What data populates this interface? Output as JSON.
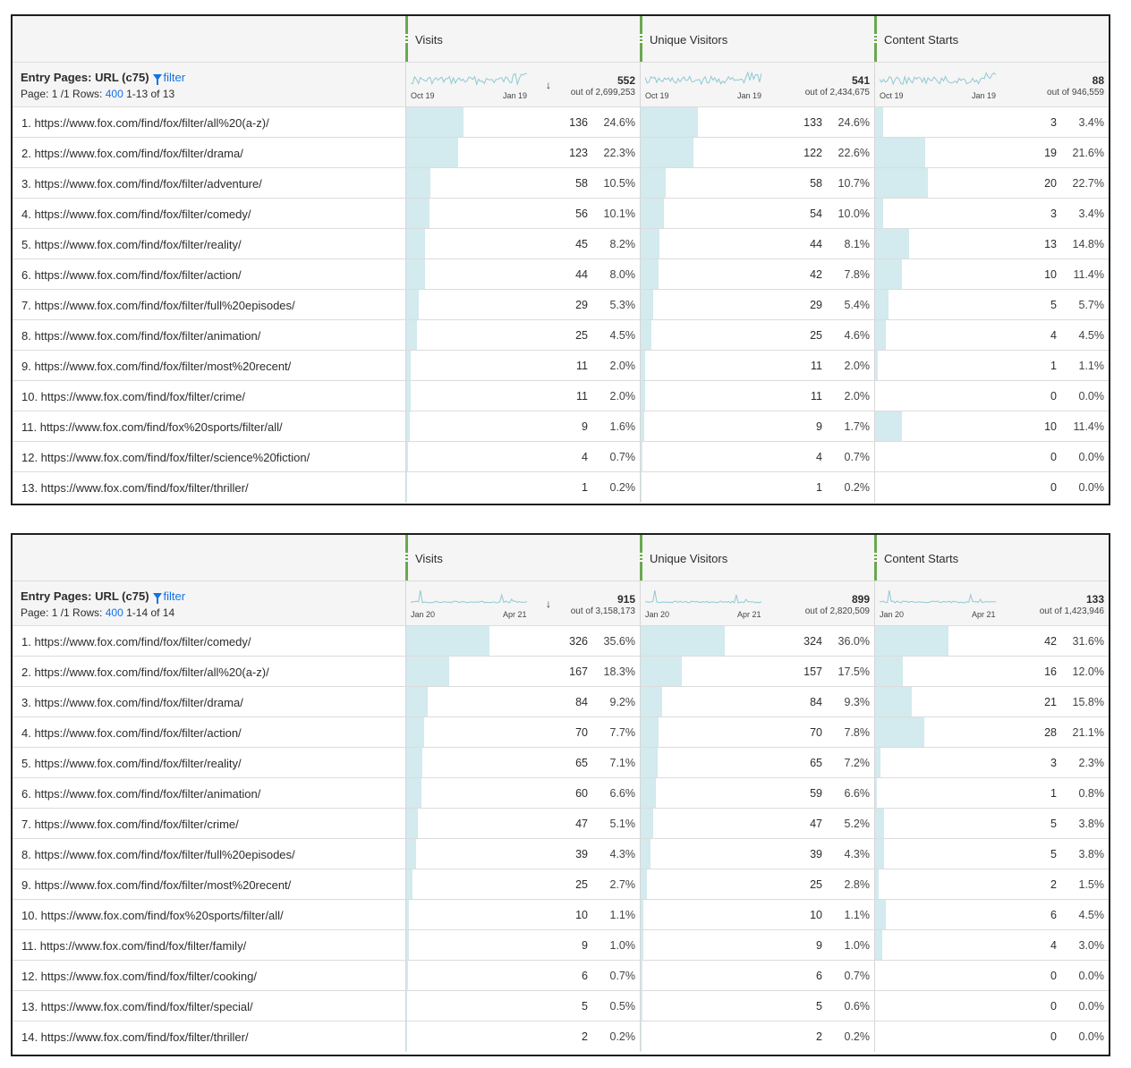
{
  "tables": [
    {
      "metrics": [
        {
          "name": "Visits",
          "total": "552",
          "out_of": "out of 2,699,253",
          "spark_start": "Oct 19",
          "spark_end": "Jan 19"
        },
        {
          "name": "Unique Visitors",
          "total": "541",
          "out_of": "out of 2,434,675",
          "spark_start": "Oct 19",
          "spark_end": "Jan 19"
        },
        {
          "name": "Content Starts",
          "total": "88",
          "out_of": "out of 946,559",
          "spark_start": "Oct 19",
          "spark_end": "Jan 19"
        }
      ],
      "dimension": {
        "title": "Entry Pages: URL (c75)",
        "filter_label": "filter",
        "page_label": "Page: 1 /1 Rows:",
        "rows_value": "400",
        "range": "1-13 of 13"
      },
      "rows": [
        {
          "label": "1. https://www.fox.com/find/fox/filter/all%20(a-z)/",
          "values": [
            [
              "136",
              "24.6%",
              0.246
            ],
            [
              "133",
              "24.6%",
              0.246
            ],
            [
              "3",
              "3.4%",
              0.034
            ]
          ]
        },
        {
          "label": "2. https://www.fox.com/find/fox/filter/drama/",
          "values": [
            [
              "123",
              "22.3%",
              0.223
            ],
            [
              "122",
              "22.6%",
              0.226
            ],
            [
              "19",
              "21.6%",
              0.216
            ]
          ]
        },
        {
          "label": "3. https://www.fox.com/find/fox/filter/adventure/",
          "values": [
            [
              "58",
              "10.5%",
              0.105
            ],
            [
              "58",
              "10.7%",
              0.107
            ],
            [
              "20",
              "22.7%",
              0.227
            ]
          ]
        },
        {
          "label": "4. https://www.fox.com/find/fox/filter/comedy/",
          "values": [
            [
              "56",
              "10.1%",
              0.101
            ],
            [
              "54",
              "10.0%",
              0.1
            ],
            [
              "3",
              "3.4%",
              0.034
            ]
          ]
        },
        {
          "label": "5. https://www.fox.com/find/fox/filter/reality/",
          "values": [
            [
              "45",
              "8.2%",
              0.082
            ],
            [
              "44",
              "8.1%",
              0.081
            ],
            [
              "13",
              "14.8%",
              0.148
            ]
          ]
        },
        {
          "label": "6. https://www.fox.com/find/fox/filter/action/",
          "values": [
            [
              "44",
              "8.0%",
              0.08
            ],
            [
              "42",
              "7.8%",
              0.078
            ],
            [
              "10",
              "11.4%",
              0.114
            ]
          ]
        },
        {
          "label": "7. https://www.fox.com/find/fox/filter/full%20episodes/",
          "values": [
            [
              "29",
              "5.3%",
              0.053
            ],
            [
              "29",
              "5.4%",
              0.054
            ],
            [
              "5",
              "5.7%",
              0.057
            ]
          ]
        },
        {
          "label": "8. https://www.fox.com/find/fox/filter/animation/",
          "values": [
            [
              "25",
              "4.5%",
              0.045
            ],
            [
              "25",
              "4.6%",
              0.046
            ],
            [
              "4",
              "4.5%",
              0.045
            ]
          ]
        },
        {
          "label": "9. https://www.fox.com/find/fox/filter/most%20recent/",
          "values": [
            [
              "11",
              "2.0%",
              0.02
            ],
            [
              "11",
              "2.0%",
              0.02
            ],
            [
              "1",
              "1.1%",
              0.011
            ]
          ]
        },
        {
          "label": "10. https://www.fox.com/find/fox/filter/crime/",
          "values": [
            [
              "11",
              "2.0%",
              0.02
            ],
            [
              "11",
              "2.0%",
              0.02
            ],
            [
              "0",
              "0.0%",
              0
            ]
          ]
        },
        {
          "label": "11. https://www.fox.com/find/fox%20sports/filter/all/",
          "values": [
            [
              "9",
              "1.6%",
              0.016
            ],
            [
              "9",
              "1.7%",
              0.017
            ],
            [
              "10",
              "11.4%",
              0.114
            ]
          ]
        },
        {
          "label": "12. https://www.fox.com/find/fox/filter/science%20fiction/",
          "values": [
            [
              "4",
              "0.7%",
              0.007
            ],
            [
              "4",
              "0.7%",
              0.007
            ],
            [
              "0",
              "0.0%",
              0
            ]
          ]
        },
        {
          "label": "13. https://www.fox.com/find/fox/filter/thriller/",
          "values": [
            [
              "1",
              "0.2%",
              0.002
            ],
            [
              "1",
              "0.2%",
              0.002
            ],
            [
              "0",
              "0.0%",
              0
            ]
          ]
        }
      ]
    },
    {
      "metrics": [
        {
          "name": "Visits",
          "total": "915",
          "out_of": "out of 3,158,173",
          "spark_start": "Jan 20",
          "spark_end": "Apr 21"
        },
        {
          "name": "Unique Visitors",
          "total": "899",
          "out_of": "out of 2,820,509",
          "spark_start": "Jan 20",
          "spark_end": "Apr 21"
        },
        {
          "name": "Content Starts",
          "total": "133",
          "out_of": "out of 1,423,946",
          "spark_start": "Jan 20",
          "spark_end": "Apr 21"
        }
      ],
      "dimension": {
        "title": "Entry Pages: URL (c75)",
        "filter_label": "filter",
        "page_label": "Page: 1 /1 Rows:",
        "rows_value": "400",
        "range": "1-14 of 14"
      },
      "rows": [
        {
          "label": "1. https://www.fox.com/find/fox/filter/comedy/",
          "values": [
            [
              "326",
              "35.6%",
              0.356
            ],
            [
              "324",
              "36.0%",
              0.36
            ],
            [
              "42",
              "31.6%",
              0.316
            ]
          ]
        },
        {
          "label": "2. https://www.fox.com/find/fox/filter/all%20(a-z)/",
          "values": [
            [
              "167",
              "18.3%",
              0.183
            ],
            [
              "157",
              "17.5%",
              0.175
            ],
            [
              "16",
              "12.0%",
              0.12
            ]
          ]
        },
        {
          "label": "3. https://www.fox.com/find/fox/filter/drama/",
          "values": [
            [
              "84",
              "9.2%",
              0.092
            ],
            [
              "84",
              "9.3%",
              0.093
            ],
            [
              "21",
              "15.8%",
              0.158
            ]
          ]
        },
        {
          "label": "4. https://www.fox.com/find/fox/filter/action/",
          "values": [
            [
              "70",
              "7.7%",
              0.077
            ],
            [
              "70",
              "7.8%",
              0.078
            ],
            [
              "28",
              "21.1%",
              0.211
            ]
          ]
        },
        {
          "label": "5. https://www.fox.com/find/fox/filter/reality/",
          "values": [
            [
              "65",
              "7.1%",
              0.071
            ],
            [
              "65",
              "7.2%",
              0.072
            ],
            [
              "3",
              "2.3%",
              0.023
            ]
          ]
        },
        {
          "label": "6. https://www.fox.com/find/fox/filter/animation/",
          "values": [
            [
              "60",
              "6.6%",
              0.066
            ],
            [
              "59",
              "6.6%",
              0.066
            ],
            [
              "1",
              "0.8%",
              0.008
            ]
          ]
        },
        {
          "label": "7. https://www.fox.com/find/fox/filter/crime/",
          "values": [
            [
              "47",
              "5.1%",
              0.051
            ],
            [
              "47",
              "5.2%",
              0.052
            ],
            [
              "5",
              "3.8%",
              0.038
            ]
          ]
        },
        {
          "label": "8. https://www.fox.com/find/fox/filter/full%20episodes/",
          "values": [
            [
              "39",
              "4.3%",
              0.043
            ],
            [
              "39",
              "4.3%",
              0.043
            ],
            [
              "5",
              "3.8%",
              0.038
            ]
          ]
        },
        {
          "label": "9. https://www.fox.com/find/fox/filter/most%20recent/",
          "values": [
            [
              "25",
              "2.7%",
              0.027
            ],
            [
              "25",
              "2.8%",
              0.028
            ],
            [
              "2",
              "1.5%",
              0.015
            ]
          ]
        },
        {
          "label": "10. https://www.fox.com/find/fox%20sports/filter/all/",
          "values": [
            [
              "10",
              "1.1%",
              0.011
            ],
            [
              "10",
              "1.1%",
              0.011
            ],
            [
              "6",
              "4.5%",
              0.045
            ]
          ]
        },
        {
          "label": "11. https://www.fox.com/find/fox/filter/family/",
          "values": [
            [
              "9",
              "1.0%",
              0.01
            ],
            [
              "9",
              "1.0%",
              0.01
            ],
            [
              "4",
              "3.0%",
              0.03
            ]
          ]
        },
        {
          "label": "12. https://www.fox.com/find/fox/filter/cooking/",
          "values": [
            [
              "6",
              "0.7%",
              0.007
            ],
            [
              "6",
              "0.7%",
              0.007
            ],
            [
              "0",
              "0.0%",
              0
            ]
          ]
        },
        {
          "label": "13. https://www.fox.com/find/fox/filter/special/",
          "values": [
            [
              "5",
              "0.5%",
              0.005
            ],
            [
              "5",
              "0.6%",
              0.006
            ],
            [
              "0",
              "0.0%",
              0
            ]
          ]
        },
        {
          "label": "14. https://www.fox.com/find/fox/filter/thriller/",
          "values": [
            [
              "2",
              "0.2%",
              0.002
            ],
            [
              "2",
              "0.2%",
              0.002
            ],
            [
              "0",
              "0.0%",
              0
            ]
          ]
        }
      ]
    }
  ],
  "colors": {
    "bar": "#d3eaee",
    "spark": "#8fc9d2",
    "link": "#1473e6",
    "metric_accent": "#6aa84f"
  },
  "icons": {
    "filter": "filter-funnel-icon",
    "sort": "sort-down-arrow-icon"
  }
}
